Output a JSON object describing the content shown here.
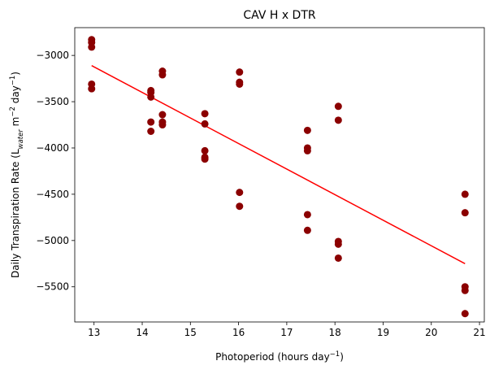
{
  "chart_data": {
    "type": "scatter",
    "title": "CAV H x DTR",
    "xlabel": {
      "prefix": "Photoperiod (hours day",
      "sup": "−1",
      "suffix": ")"
    },
    "ylabel": {
      "p1": "Daily Transpiration Rate (L",
      "sub": "water",
      "p2": " m",
      "sup1": "−2",
      "p3": " day",
      "sup2": "−1",
      "p4": ")"
    },
    "xlim": [
      12.6,
      21.1
    ],
    "ylim": [
      -5880,
      -2700
    ],
    "xticks": [
      13,
      14,
      15,
      16,
      17,
      18,
      19,
      20,
      21
    ],
    "xtick_labels": [
      "13",
      "14",
      "15",
      "16",
      "17",
      "18",
      "19",
      "20",
      "21"
    ],
    "yticks": [
      -5500,
      -5000,
      -4500,
      -4000,
      -3500,
      -3000
    ],
    "ytick_labels": [
      "−5500",
      "−5000",
      "−4500",
      "−4000",
      "−3500",
      "−3000"
    ],
    "grid": false,
    "point_color": "#8b0000",
    "line_color": "#ff0000",
    "points": [
      {
        "x": 12.95,
        "y": -2830
      },
      {
        "x": 12.95,
        "y": -2860
      },
      {
        "x": 12.95,
        "y": -2910
      },
      {
        "x": 12.95,
        "y": -3310
      },
      {
        "x": 12.95,
        "y": -3360
      },
      {
        "x": 14.18,
        "y": -3380
      },
      {
        "x": 14.18,
        "y": -3400
      },
      {
        "x": 14.18,
        "y": -3450
      },
      {
        "x": 14.18,
        "y": -3720
      },
      {
        "x": 14.18,
        "y": -3820
      },
      {
        "x": 14.42,
        "y": -3170
      },
      {
        "x": 14.42,
        "y": -3210
      },
      {
        "x": 14.42,
        "y": -3640
      },
      {
        "x": 14.42,
        "y": -3720
      },
      {
        "x": 14.42,
        "y": -3750
      },
      {
        "x": 15.3,
        "y": -3630
      },
      {
        "x": 15.3,
        "y": -3740
      },
      {
        "x": 15.3,
        "y": -4030
      },
      {
        "x": 15.3,
        "y": -4100
      },
      {
        "x": 15.3,
        "y": -4120
      },
      {
        "x": 16.02,
        "y": -3180
      },
      {
        "x": 16.02,
        "y": -3290
      },
      {
        "x": 16.02,
        "y": -3310
      },
      {
        "x": 16.02,
        "y": -4480
      },
      {
        "x": 16.02,
        "y": -4630
      },
      {
        "x": 17.43,
        "y": -3810
      },
      {
        "x": 17.43,
        "y": -4000
      },
      {
        "x": 17.43,
        "y": -4030
      },
      {
        "x": 17.43,
        "y": -4720
      },
      {
        "x": 17.43,
        "y": -4890
      },
      {
        "x": 18.07,
        "y": -3550
      },
      {
        "x": 18.07,
        "y": -3700
      },
      {
        "x": 18.07,
        "y": -5010
      },
      {
        "x": 18.07,
        "y": -5040
      },
      {
        "x": 18.07,
        "y": -5190
      },
      {
        "x": 20.7,
        "y": -4500
      },
      {
        "x": 20.7,
        "y": -4700
      },
      {
        "x": 20.7,
        "y": -5500
      },
      {
        "x": 20.7,
        "y": -5540
      },
      {
        "x": 20.7,
        "y": -5790
      }
    ],
    "fit_line": {
      "x": [
        12.95,
        20.7
      ],
      "y": [
        -3110,
        -5250
      ]
    }
  }
}
